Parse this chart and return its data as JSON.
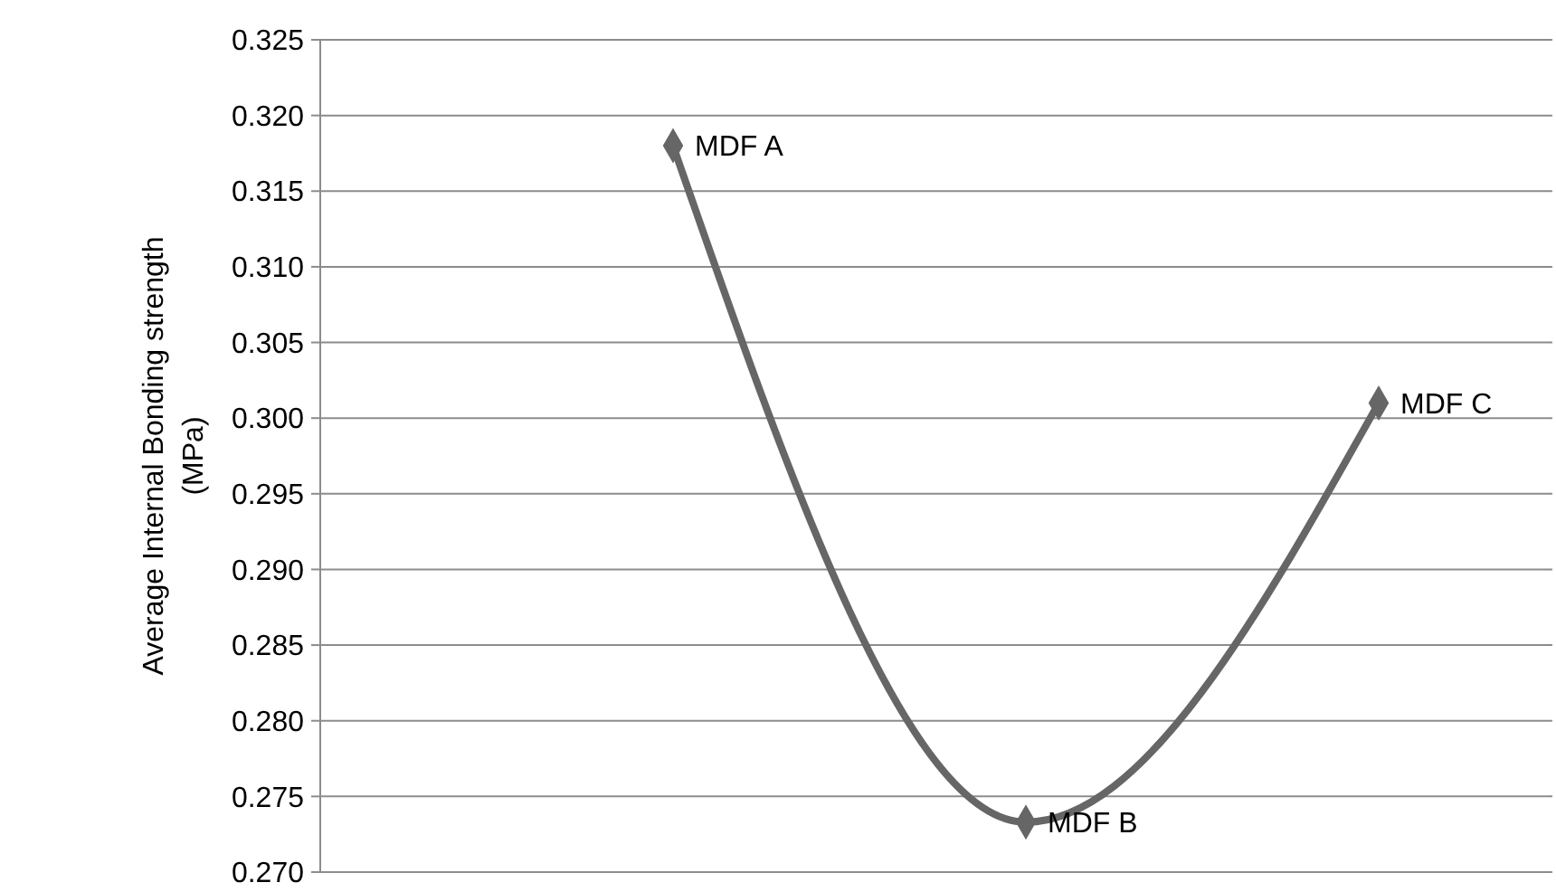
{
  "chart_data": {
    "type": "line",
    "ylabel": "Average Internal Bonding strength (MPa)",
    "categories": [
      null,
      null,
      null
    ],
    "series": [
      {
        "color": "#666666",
        "values": [
          0.318,
          0.2733,
          0.301
        ]
      }
    ],
    "annotations": [
      "MDF A",
      "MDF B",
      "MDF C"
    ],
    "ylim": [
      0.27,
      0.325
    ],
    "yticks": [
      {
        "value": 0.27,
        "label": "0.270"
      },
      {
        "value": 0.275,
        "label": "0.275"
      },
      {
        "value": 0.28,
        "label": "0.280"
      },
      {
        "value": 0.285,
        "label": "0.285"
      },
      {
        "value": 0.29,
        "label": "0.290"
      },
      {
        "value": 0.295,
        "label": "0.295"
      },
      {
        "value": 0.3,
        "label": "0.300"
      },
      {
        "value": 0.305,
        "label": "0.305"
      },
      {
        "value": 0.31,
        "label": "0.310"
      },
      {
        "value": 0.315,
        "label": "0.315"
      },
      {
        "value": 0.32,
        "label": "0.320"
      },
      {
        "value": 0.325,
        "label": "0.325"
      }
    ],
    "grid": "y",
    "marker": "diamond",
    "line_style": "solid"
  }
}
